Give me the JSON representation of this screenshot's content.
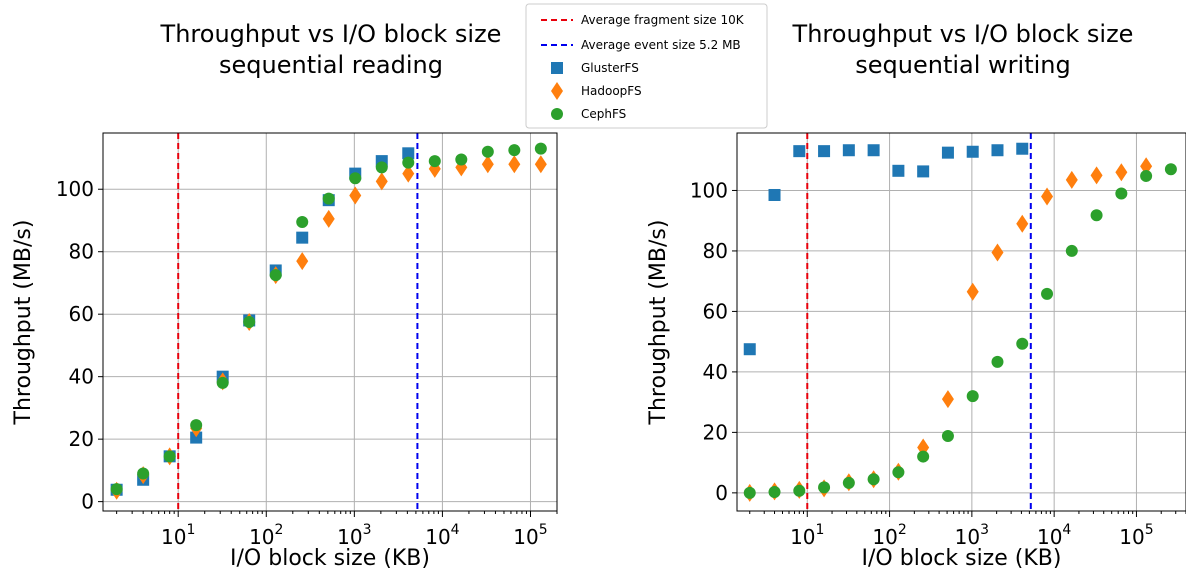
{
  "colors": {
    "glusterfs": "#1f77b4",
    "hadoopfs": "#ff7f0e",
    "cephfs": "#2ca02c",
    "fragment_line": "#e8000b",
    "event_line": "#0000ee",
    "grid": "#b0b0b0"
  },
  "legend": {
    "placement": "top-center",
    "items": [
      {
        "label": "Average fragment size 10K",
        "kind": "dashed-line",
        "color": "#e8000b"
      },
      {
        "label": "Average event size 5.2 MB",
        "kind": "dashed-line",
        "color": "#0000ee"
      },
      {
        "label": "GlusterFS",
        "kind": "square",
        "color": "#1f77b4"
      },
      {
        "label": "HadoopFS",
        "kind": "diamond",
        "color": "#ff7f0e"
      },
      {
        "label": "CephFS",
        "kind": "circle",
        "color": "#2ca02c"
      }
    ]
  },
  "chart_data": [
    {
      "type": "scatter",
      "title": [
        "Throughput vs I/O block size",
        "sequential reading"
      ],
      "xlabel": "I/O block size (KB)",
      "ylabel": "Throughput (MB/s)",
      "xscale": "log",
      "xlim": [
        1.4,
        200000
      ],
      "ylim": [
        -3,
        118
      ],
      "xticks": [
        10,
        100,
        1000,
        10000,
        100000
      ],
      "xtick_labels": [
        {
          "b": "10",
          "e": "1"
        },
        {
          "b": "10",
          "e": "2"
        },
        {
          "b": "10",
          "e": "3"
        },
        {
          "b": "10",
          "e": "4"
        },
        {
          "b": "10",
          "e": "5"
        }
      ],
      "yticks": [
        0,
        20,
        40,
        60,
        80,
        100
      ],
      "grid": true,
      "vlines": [
        {
          "x": 10,
          "series": "Average fragment size 10K"
        },
        {
          "x": 5200,
          "series": "Average event size 5.2 MB"
        }
      ],
      "series": [
        {
          "name": "GlusterFS",
          "marker": "square",
          "x": [
            2,
            4,
            8,
            16,
            32,
            64,
            128,
            256,
            512,
            1024,
            2048,
            4096
          ],
          "y": [
            3.8,
            7.0,
            14.5,
            20.5,
            40,
            58,
            74,
            84.5,
            96.5,
            105,
            109,
            111.5
          ]
        },
        {
          "name": "HadoopFS",
          "marker": "diamond",
          "x": [
            2,
            4,
            8,
            16,
            32,
            64,
            128,
            256,
            512,
            1024,
            2048,
            4096,
            8192,
            16384,
            32768,
            65536,
            131072
          ],
          "y": [
            3.5,
            8.5,
            14.5,
            23.5,
            38.5,
            57.5,
            72.5,
            77,
            90.5,
            98,
            102.5,
            105,
            106.5,
            107,
            108,
            108,
            108
          ]
        },
        {
          "name": "CephFS",
          "marker": "circle",
          "x": [
            2,
            4,
            8,
            16,
            32,
            64,
            128,
            256,
            512,
            1024,
            2048,
            4096,
            8192,
            16384,
            32768,
            65536,
            131072
          ],
          "y": [
            4,
            9,
            14.5,
            24.5,
            38,
            57.5,
            72.5,
            89.5,
            97,
            103.5,
            107,
            108.5,
            109,
            109.5,
            112,
            112.5,
            113
          ]
        }
      ]
    },
    {
      "type": "scatter",
      "title": [
        "Throughput vs I/O block size",
        "sequential writing"
      ],
      "xlabel": "I/O block size (KB)",
      "ylabel": "Throughput (MB/s)",
      "xscale": "log",
      "xlim": [
        1.4,
        400000
      ],
      "ylim": [
        -6,
        119
      ],
      "xticks": [
        10,
        100,
        1000,
        10000,
        100000
      ],
      "xtick_labels": [
        {
          "b": "10",
          "e": "1"
        },
        {
          "b": "10",
          "e": "2"
        },
        {
          "b": "10",
          "e": "3"
        },
        {
          "b": "10",
          "e": "4"
        },
        {
          "b": "10",
          "e": "5"
        }
      ],
      "yticks": [
        0,
        20,
        40,
        60,
        80,
        100
      ],
      "grid": true,
      "vlines": [
        {
          "x": 10,
          "series": "Average fragment size 10K"
        },
        {
          "x": 5200,
          "series": "Average event size 5.2 MB"
        }
      ],
      "series": [
        {
          "name": "GlusterFS",
          "marker": "square",
          "x": [
            2,
            4,
            8,
            16,
            32,
            64,
            128,
            256,
            512,
            1024,
            2048,
            4096
          ],
          "y": [
            47.5,
            98.5,
            113,
            113,
            113.3,
            113.3,
            106.5,
            106.3,
            112.5,
            112.8,
            113.3,
            113.8
          ]
        },
        {
          "name": "HadoopFS",
          "marker": "diamond",
          "x": [
            2,
            4,
            8,
            16,
            32,
            64,
            128,
            256,
            512,
            1024,
            2048,
            4096,
            8192,
            16384,
            32768,
            65536,
            131072
          ],
          "y": [
            0,
            0.5,
            1,
            1.5,
            3.5,
            4.5,
            7,
            15,
            31,
            66.5,
            79.5,
            89,
            98,
            103.5,
            105,
            106,
            108
          ]
        },
        {
          "name": "CephFS",
          "marker": "circle",
          "x": [
            2,
            4,
            8,
            16,
            32,
            64,
            128,
            256,
            512,
            1024,
            2048,
            4096,
            8192,
            16384,
            32768,
            65536,
            131072,
            262144
          ],
          "y": [
            0,
            0.3,
            0.7,
            1.8,
            3.3,
            4.5,
            6.8,
            12,
            18.8,
            32,
            43.3,
            49.3,
            65.8,
            80,
            91.8,
            99,
            104.8,
            107
          ]
        }
      ]
    }
  ]
}
